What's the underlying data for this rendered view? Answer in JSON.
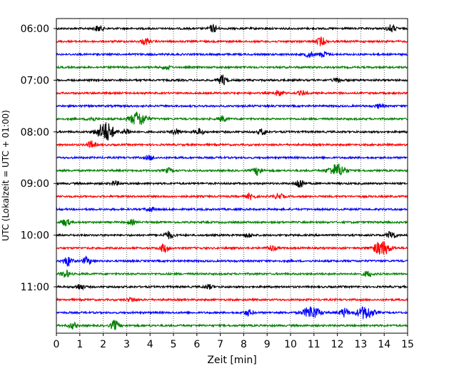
{
  "chart_data": {
    "type": "line",
    "title": "",
    "xlabel": "Zeit  [min]",
    "ylabel": "UTC (Lokalzeit = UTC + 01:00)",
    "xlim": [
      0,
      15
    ],
    "x_ticks": [
      "0",
      "1",
      "2",
      "3",
      "4",
      "5",
      "6",
      "7",
      "8",
      "9",
      "10",
      "11",
      "12",
      "13",
      "14",
      "15"
    ],
    "y_tick_labels": [
      "06:00",
      "07:00",
      "08:00",
      "09:00",
      "10:00",
      "11:00"
    ],
    "grid": "vertical dotted lines at each minute",
    "trace_interval_minutes": 15,
    "start_time": "06:00",
    "colors": [
      "#000000",
      "#ff0000",
      "#0000ff",
      "#008000"
    ],
    "traces": [
      {
        "start": "06:00",
        "events": [
          {
            "t": 1.8,
            "amp": 4
          },
          {
            "t": 6.7,
            "amp": 5
          },
          {
            "t": 14.3,
            "amp": 5
          }
        ]
      },
      {
        "start": "06:15",
        "events": [
          {
            "t": 3.8,
            "amp": 4
          },
          {
            "t": 11.3,
            "amp": 6
          }
        ]
      },
      {
        "start": "06:30",
        "events": [
          {
            "t": 10.8,
            "amp": 4
          },
          {
            "t": 11.4,
            "amp": 4
          }
        ]
      },
      {
        "start": "06:45",
        "events": [
          {
            "t": 4.7,
            "amp": 3
          }
        ]
      },
      {
        "start": "07:00",
        "events": [
          {
            "t": 7.1,
            "amp": 7
          },
          {
            "t": 12.0,
            "amp": 3
          }
        ]
      },
      {
        "start": "07:15",
        "events": [
          {
            "t": 9.5,
            "amp": 4
          },
          {
            "t": 10.5,
            "amp": 3
          }
        ]
      },
      {
        "start": "07:30",
        "events": [
          {
            "t": 13.8,
            "amp": 3
          }
        ]
      },
      {
        "start": "07:45",
        "events": [
          {
            "t": 3.5,
            "amp": 10
          },
          {
            "t": 1.5,
            "amp": 3
          },
          {
            "t": 7.1,
            "amp": 4
          }
        ]
      },
      {
        "start": "08:00",
        "events": [
          {
            "t": 2.1,
            "amp": 14
          },
          {
            "t": 3.0,
            "amp": 4
          },
          {
            "t": 5.1,
            "amp": 4
          },
          {
            "t": 6.1,
            "amp": 4
          },
          {
            "t": 8.8,
            "amp": 4
          }
        ]
      },
      {
        "start": "08:15",
        "events": [
          {
            "t": 1.5,
            "amp": 5
          }
        ]
      },
      {
        "start": "08:30",
        "events": [
          {
            "t": 4.0,
            "amp": 3
          }
        ]
      },
      {
        "start": "08:45",
        "events": [
          {
            "t": 8.6,
            "amp": 6
          },
          {
            "t": 12.0,
            "amp": 9
          },
          {
            "t": 4.8,
            "amp": 3
          }
        ]
      },
      {
        "start": "09:00",
        "events": [
          {
            "t": 10.4,
            "amp": 7
          },
          {
            "t": 2.5,
            "amp": 3
          }
        ]
      },
      {
        "start": "09:15",
        "events": [
          {
            "t": 8.3,
            "amp": 4
          },
          {
            "t": 9.5,
            "amp": 4
          }
        ]
      },
      {
        "start": "09:30",
        "events": [
          {
            "t": 4.0,
            "amp": 3
          }
        ]
      },
      {
        "start": "09:45",
        "events": [
          {
            "t": 0.4,
            "amp": 5
          },
          {
            "t": 3.2,
            "amp": 3
          }
        ]
      },
      {
        "start": "10:00",
        "events": [
          {
            "t": 4.8,
            "amp": 5
          },
          {
            "t": 14.3,
            "amp": 6
          },
          {
            "t": 8.2,
            "amp": 3
          }
        ]
      },
      {
        "start": "10:15",
        "events": [
          {
            "t": 13.9,
            "amp": 10
          },
          {
            "t": 4.6,
            "amp": 6
          },
          {
            "t": 9.2,
            "amp": 4
          }
        ]
      },
      {
        "start": "10:30",
        "events": [
          {
            "t": 0.5,
            "amp": 7
          },
          {
            "t": 1.3,
            "amp": 5
          }
        ]
      },
      {
        "start": "10:45",
        "events": [
          {
            "t": 0.4,
            "amp": 5
          },
          {
            "t": 13.3,
            "amp": 4
          }
        ]
      },
      {
        "start": "11:00",
        "events": [
          {
            "t": 1.0,
            "amp": 4
          },
          {
            "t": 6.5,
            "amp": 3
          }
        ]
      },
      {
        "start": "11:15",
        "events": [
          {
            "t": 3.2,
            "amp": 3
          }
        ]
      },
      {
        "start": "11:30",
        "events": [
          {
            "t": 10.9,
            "amp": 9
          },
          {
            "t": 12.3,
            "amp": 6
          },
          {
            "t": 13.2,
            "amp": 9
          },
          {
            "t": 8.2,
            "amp": 4
          }
        ]
      },
      {
        "start": "11:45",
        "events": [
          {
            "t": 2.5,
            "amp": 7
          },
          {
            "t": 0.7,
            "amp": 4
          }
        ]
      }
    ]
  }
}
